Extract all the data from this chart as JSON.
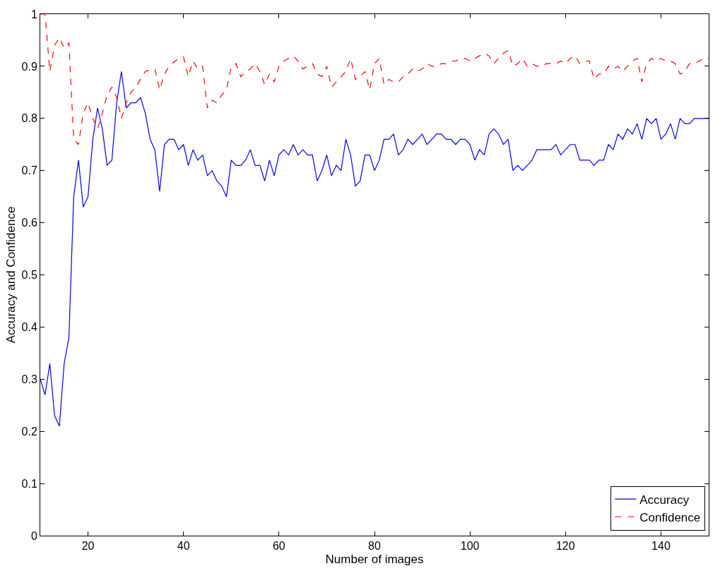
{
  "chart_data": {
    "type": "line",
    "xlabel": "Number of images",
    "ylabel": "Accuracy and Confidence",
    "x": [
      10,
      11,
      12,
      13,
      14,
      15,
      16,
      17,
      18,
      19,
      20,
      21,
      22,
      23,
      24,
      25,
      26,
      27,
      28,
      29,
      30,
      31,
      32,
      33,
      34,
      35,
      36,
      37,
      38,
      39,
      40,
      41,
      42,
      43,
      44,
      45,
      46,
      47,
      48,
      49,
      50,
      51,
      52,
      53,
      54,
      55,
      56,
      57,
      58,
      59,
      60,
      61,
      62,
      63,
      64,
      65,
      66,
      67,
      68,
      69,
      70,
      71,
      72,
      73,
      74,
      75,
      76,
      77,
      78,
      79,
      80,
      81,
      82,
      83,
      84,
      85,
      86,
      87,
      88,
      89,
      90,
      91,
      92,
      93,
      94,
      95,
      96,
      97,
      98,
      99,
      100,
      101,
      102,
      103,
      104,
      105,
      106,
      107,
      108,
      109,
      110,
      111,
      112,
      113,
      114,
      115,
      116,
      117,
      118,
      119,
      120,
      121,
      122,
      123,
      124,
      125,
      126,
      127,
      128,
      129,
      130,
      131,
      132,
      133,
      134,
      135,
      136,
      137,
      138,
      139,
      140,
      141,
      142,
      143,
      144,
      145,
      146,
      147,
      148,
      149,
      150
    ],
    "series": [
      {
        "name": "Accuracy",
        "color": "#0000ff",
        "line_style": "solid",
        "values": [
          0.3,
          0.27,
          0.33,
          0.23,
          0.21,
          0.33,
          0.38,
          0.65,
          0.72,
          0.63,
          0.65,
          0.76,
          0.82,
          0.78,
          0.71,
          0.72,
          0.83,
          0.89,
          0.82,
          0.83,
          0.83,
          0.84,
          0.81,
          0.76,
          0.74,
          0.66,
          0.75,
          0.76,
          0.76,
          0.74,
          0.75,
          0.71,
          0.74,
          0.72,
          0.73,
          0.69,
          0.7,
          0.68,
          0.67,
          0.65,
          0.72,
          0.71,
          0.71,
          0.72,
          0.74,
          0.71,
          0.71,
          0.68,
          0.72,
          0.69,
          0.73,
          0.74,
          0.73,
          0.75,
          0.73,
          0.74,
          0.73,
          0.73,
          0.68,
          0.7,
          0.73,
          0.69,
          0.71,
          0.7,
          0.76,
          0.73,
          0.67,
          0.68,
          0.73,
          0.73,
          0.7,
          0.72,
          0.76,
          0.76,
          0.77,
          0.73,
          0.74,
          0.76,
          0.75,
          0.76,
          0.77,
          0.75,
          0.76,
          0.77,
          0.77,
          0.76,
          0.76,
          0.75,
          0.76,
          0.76,
          0.75,
          0.72,
          0.74,
          0.73,
          0.77,
          0.78,
          0.77,
          0.75,
          0.76,
          0.7,
          0.71,
          0.7,
          0.71,
          0.72,
          0.74,
          0.74,
          0.74,
          0.74,
          0.75,
          0.73,
          0.74,
          0.75,
          0.75,
          0.72,
          0.72,
          0.72,
          0.71,
          0.72,
          0.72,
          0.75,
          0.74,
          0.77,
          0.76,
          0.78,
          0.77,
          0.79,
          0.76,
          0.8,
          0.79,
          0.8,
          0.76,
          0.77,
          0.79,
          0.76,
          0.8,
          0.79,
          0.79,
          0.8,
          0.8,
          0.8,
          0.8
        ]
      },
      {
        "name": "Confidence",
        "color": "#ff0000",
        "line_style": "dashed",
        "values": [
          1.0,
          1.0,
          0.89,
          0.94,
          0.955,
          0.935,
          0.945,
          0.76,
          0.75,
          0.81,
          0.83,
          0.8,
          0.78,
          0.81,
          0.845,
          0.86,
          0.84,
          0.8,
          0.83,
          0.85,
          0.86,
          0.875,
          0.89,
          0.893,
          0.895,
          0.855,
          0.885,
          0.9,
          0.908,
          0.915,
          0.918,
          0.88,
          0.91,
          0.895,
          0.9,
          0.82,
          0.835,
          0.83,
          0.845,
          0.855,
          0.9,
          0.905,
          0.88,
          0.89,
          0.895,
          0.905,
          0.89,
          0.865,
          0.885,
          0.87,
          0.9,
          0.91,
          0.915,
          0.92,
          0.91,
          0.895,
          0.9,
          0.905,
          0.885,
          0.88,
          0.9,
          0.86,
          0.87,
          0.88,
          0.89,
          0.915,
          0.875,
          0.88,
          0.89,
          0.855,
          0.905,
          0.915,
          0.865,
          0.875,
          0.87,
          0.87,
          0.88,
          0.885,
          0.895,
          0.89,
          0.895,
          0.905,
          0.9,
          0.9,
          0.905,
          0.905,
          0.91,
          0.91,
          0.915,
          0.915,
          0.91,
          0.915,
          0.92,
          0.925,
          0.92,
          0.905,
          0.915,
          0.925,
          0.93,
          0.9,
          0.905,
          0.915,
          0.9,
          0.905,
          0.9,
          0.9,
          0.905,
          0.905,
          0.905,
          0.91,
          0.905,
          0.915,
          0.92,
          0.905,
          0.91,
          0.91,
          0.875,
          0.885,
          0.885,
          0.9,
          0.895,
          0.9,
          0.89,
          0.9,
          0.91,
          0.915,
          0.87,
          0.905,
          0.915,
          0.91,
          0.915,
          0.91,
          0.91,
          0.905,
          0.885,
          0.89,
          0.905,
          0.905,
          0.91,
          0.915,
          0.915
        ]
      }
    ],
    "xlim": [
      10,
      150
    ],
    "xticks": [
      20,
      40,
      60,
      80,
      100,
      120,
      140
    ],
    "ylim": [
      0,
      1
    ],
    "yticks": [
      0,
      0.1,
      0.2,
      0.3,
      0.4,
      0.5,
      0.6,
      0.7,
      0.8,
      0.9,
      1
    ],
    "legend": "bottom right",
    "marker": "none"
  }
}
